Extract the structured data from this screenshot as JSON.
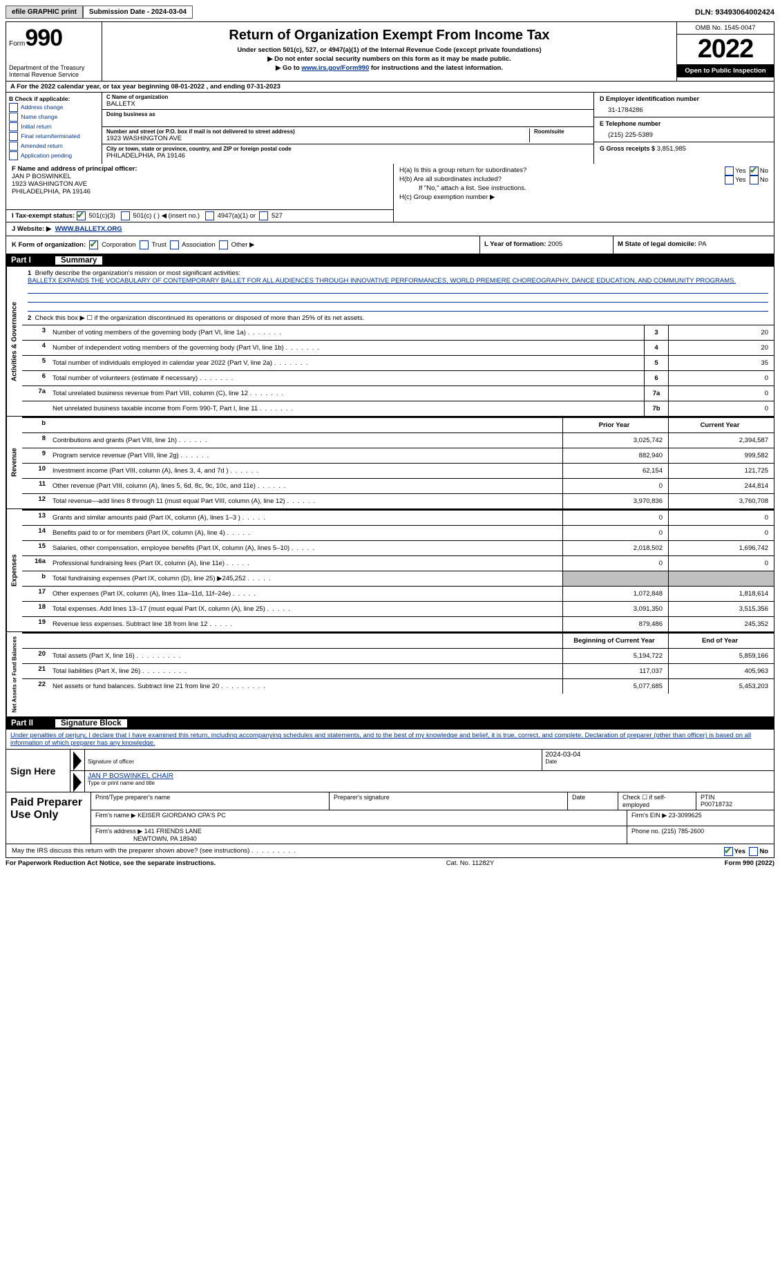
{
  "topbar": {
    "efile": "efile GRAPHIC print",
    "sub_date_label": "Submission Date - 2024-03-04",
    "dln": "DLN: 93493064002424"
  },
  "header": {
    "form_word": "Form",
    "form_number": "990",
    "dept": "Department of the Treasury Internal Revenue Service",
    "title": "Return of Organization Exempt From Income Tax",
    "line1": "Under section 501(c), 527, or 4947(a)(1) of the Internal Revenue Code (except private foundations)",
    "line2": "▶ Do not enter social security numbers on this form as it may be made public.",
    "line3_pre": "▶ Go to ",
    "line3_link": "www.irs.gov/Form990",
    "line3_post": " for instructions and the latest information.",
    "omb": "OMB No. 1545-0047",
    "year": "2022",
    "open": "Open to Public Inspection"
  },
  "line_a": "A For the 2022 calendar year, or tax year beginning 08-01-2022    , and ending 07-31-2023",
  "box_b": {
    "header": "B Check if applicable:",
    "opts": [
      "Address change",
      "Name change",
      "Initial return",
      "Final return/terminated",
      "Amended return",
      "Application pending"
    ]
  },
  "box_c": {
    "name_label": "C Name of organization",
    "name": "BALLETX",
    "dba_label": "Doing business as",
    "addr_label": "Number and street (or P.O. box if mail is not delivered to street address)",
    "room_label": "Room/suite",
    "addr": "1923 WASHINGTON AVE",
    "city_label": "City or town, state or province, country, and ZIP or foreign postal code",
    "city": "PHILADELPHIA, PA  19146"
  },
  "box_d": {
    "label": "D Employer identification number",
    "val": "31-1784286"
  },
  "box_e": {
    "label": "E Telephone number",
    "val": "(215) 225-5389"
  },
  "box_g": {
    "label": "G Gross receipts $",
    "val": "3,851,985"
  },
  "box_f": {
    "label": "F Name and address of principal officer:",
    "name": "JAN P BOSWINKEL",
    "addr1": "1923 WASHINGTON AVE",
    "addr2": "PHILADELPHIA, PA  19146"
  },
  "box_h": {
    "ha": "H(a)  Is this a group return for subordinates?",
    "hb": "H(b)  Are all subordinates included?",
    "hb_note": "If \"No,\" attach a list. See instructions.",
    "hc": "H(c)  Group exemption number ▶",
    "yes": "Yes",
    "no": "No"
  },
  "box_i": {
    "label": "I   Tax-exempt status:",
    "o1": "501(c)(3)",
    "o2": "501(c) (   ) ◀ (insert no.)",
    "o3": "4947(a)(1) or",
    "o4": "527"
  },
  "box_j": {
    "label": "J   Website: ▶",
    "val": "WWW.BALLETX.ORG"
  },
  "box_k": {
    "label": "K Form of organization:",
    "o1": "Corporation",
    "o2": "Trust",
    "o3": "Association",
    "o4": "Other ▶"
  },
  "box_l": {
    "label": "L Year of formation:",
    "val": "2005"
  },
  "box_m": {
    "label": "M State of legal domicile:",
    "val": "PA"
  },
  "parts": {
    "p1": "Part I",
    "p1_title": "Summary",
    "p2": "Part II",
    "p2_title": "Signature Block"
  },
  "vtabs": {
    "ag": "Activities & Governance",
    "rev": "Revenue",
    "exp": "Expenses",
    "nab": "Net Assets or Fund Balances"
  },
  "summary": {
    "l1_label": "Briefly describe the organization's mission or most significant activities:",
    "l1_text": "BALLETX EXPANDS THE VOCABULARY OF CONTEMPORARY BALLET FOR ALL AUDIENCES THROUGH INNOVATIVE PERFORMANCES, WORLD PREMIERE CHOREOGRAPHY, DANCE EDUCATION, AND COMMUNITY PROGRAMS.",
    "l2": "Check this box ▶ ☐ if the organization discontinued its operations or disposed of more than 25% of its net assets.",
    "rows_ag": [
      {
        "n": "3",
        "d": "Number of voting members of the governing body (Part VI, line 1a)",
        "box": "3",
        "v": "20"
      },
      {
        "n": "4",
        "d": "Number of independent voting members of the governing body (Part VI, line 1b)",
        "box": "4",
        "v": "20"
      },
      {
        "n": "5",
        "d": "Total number of individuals employed in calendar year 2022 (Part V, line 2a)",
        "box": "5",
        "v": "35"
      },
      {
        "n": "6",
        "d": "Total number of volunteers (estimate if necessary)",
        "box": "6",
        "v": "0"
      },
      {
        "n": "7a",
        "d": "Total unrelated business revenue from Part VIII, column (C), line 12",
        "box": "7a",
        "v": "0"
      },
      {
        "n": "",
        "d": "Net unrelated business taxable income from Form 990-T, Part I, line 11",
        "box": "7b",
        "v": "0"
      }
    ],
    "col_prior": "Prior Year",
    "col_curr": "Current Year",
    "rows_rev": [
      {
        "n": "8",
        "d": "Contributions and grants (Part VIII, line 1h)",
        "py": "3,025,742",
        "cy": "2,394,587"
      },
      {
        "n": "9",
        "d": "Program service revenue (Part VIII, line 2g)",
        "py": "882,940",
        "cy": "999,582"
      },
      {
        "n": "10",
        "d": "Investment income (Part VIII, column (A), lines 3, 4, and 7d )",
        "py": "62,154",
        "cy": "121,725"
      },
      {
        "n": "11",
        "d": "Other revenue (Part VIII, column (A), lines 5, 6d, 8c, 9c, 10c, and 11e)",
        "py": "0",
        "cy": "244,814"
      },
      {
        "n": "12",
        "d": "Total revenue—add lines 8 through 11 (must equal Part VIII, column (A), line 12)",
        "py": "3,970,836",
        "cy": "3,760,708"
      }
    ],
    "rows_exp": [
      {
        "n": "13",
        "d": "Grants and similar amounts paid (Part IX, column (A), lines 1–3 )",
        "py": "0",
        "cy": "0"
      },
      {
        "n": "14",
        "d": "Benefits paid to or for members (Part IX, column (A), line 4)",
        "py": "0",
        "cy": "0"
      },
      {
        "n": "15",
        "d": "Salaries, other compensation, employee benefits (Part IX, column (A), lines 5–10)",
        "py": "2,018,502",
        "cy": "1,696,742"
      },
      {
        "n": "16a",
        "d": "Professional fundraising fees (Part IX, column (A), line 11e)",
        "py": "0",
        "cy": "0"
      },
      {
        "n": "b",
        "d": "Total fundraising expenses (Part IX, column (D), line 25) ▶245,252",
        "py": "",
        "cy": "",
        "shade": true
      },
      {
        "n": "17",
        "d": "Other expenses (Part IX, column (A), lines 11a–11d, 11f–24e)",
        "py": "1,072,848",
        "cy": "1,818,614"
      },
      {
        "n": "18",
        "d": "Total expenses. Add lines 13–17 (must equal Part IX, column (A), line 25)",
        "py": "3,091,350",
        "cy": "3,515,356"
      },
      {
        "n": "19",
        "d": "Revenue less expenses. Subtract line 18 from line 12",
        "py": "879,486",
        "cy": "245,352"
      }
    ],
    "col_beg": "Beginning of Current Year",
    "col_end": "End of Year",
    "rows_nab": [
      {
        "n": "20",
        "d": "Total assets (Part X, line 16)",
        "py": "5,194,722",
        "cy": "5,859,166"
      },
      {
        "n": "21",
        "d": "Total liabilities (Part X, line 26)",
        "py": "117,037",
        "cy": "405,963"
      },
      {
        "n": "22",
        "d": "Net assets or fund balances. Subtract line 21 from line 20",
        "py": "5,077,685",
        "cy": "5,453,203"
      }
    ]
  },
  "sig": {
    "penalty": "Under penalties of perjury, I declare that I have examined this return, including accompanying schedules and statements, and to the best of my knowledge and belief, it is true, correct, and complete. Declaration of preparer (other than officer) is based on all information of which preparer has any knowledge.",
    "sign_here": "Sign Here",
    "sig_officer": "Signature of officer",
    "date_val": "2024-03-04",
    "date_label": "Date",
    "name_val": "JAN P BOSWINKEL  CHAIR",
    "name_label": "Type or print name and title",
    "paid": "Paid Preparer Use Only",
    "pt_name_label": "Print/Type preparer's name",
    "pt_sig_label": "Preparer's signature",
    "pt_date_label": "Date",
    "pt_check": "Check ☐ if self-employed",
    "ptin_label": "PTIN",
    "ptin": "P00718732",
    "firm_name_label": "Firm's name    ▶",
    "firm_name": "KEISER GIORDANO CPA'S PC",
    "firm_ein_label": "Firm's EIN ▶",
    "firm_ein": "23-3099625",
    "firm_addr_label": "Firm's address ▶",
    "firm_addr1": "141 FRIENDS LANE",
    "firm_addr2": "NEWTOWN, PA  18940",
    "firm_phone_label": "Phone no.",
    "firm_phone": "(215) 785-2600",
    "discuss": "May the IRS discuss this return with the preparer shown above? (see instructions)",
    "yes": "Yes",
    "no": "No"
  },
  "footer": {
    "left": "For Paperwork Reduction Act Notice, see the separate instructions.",
    "mid": "Cat. No. 11282Y",
    "right": "Form 990 (2022)"
  }
}
